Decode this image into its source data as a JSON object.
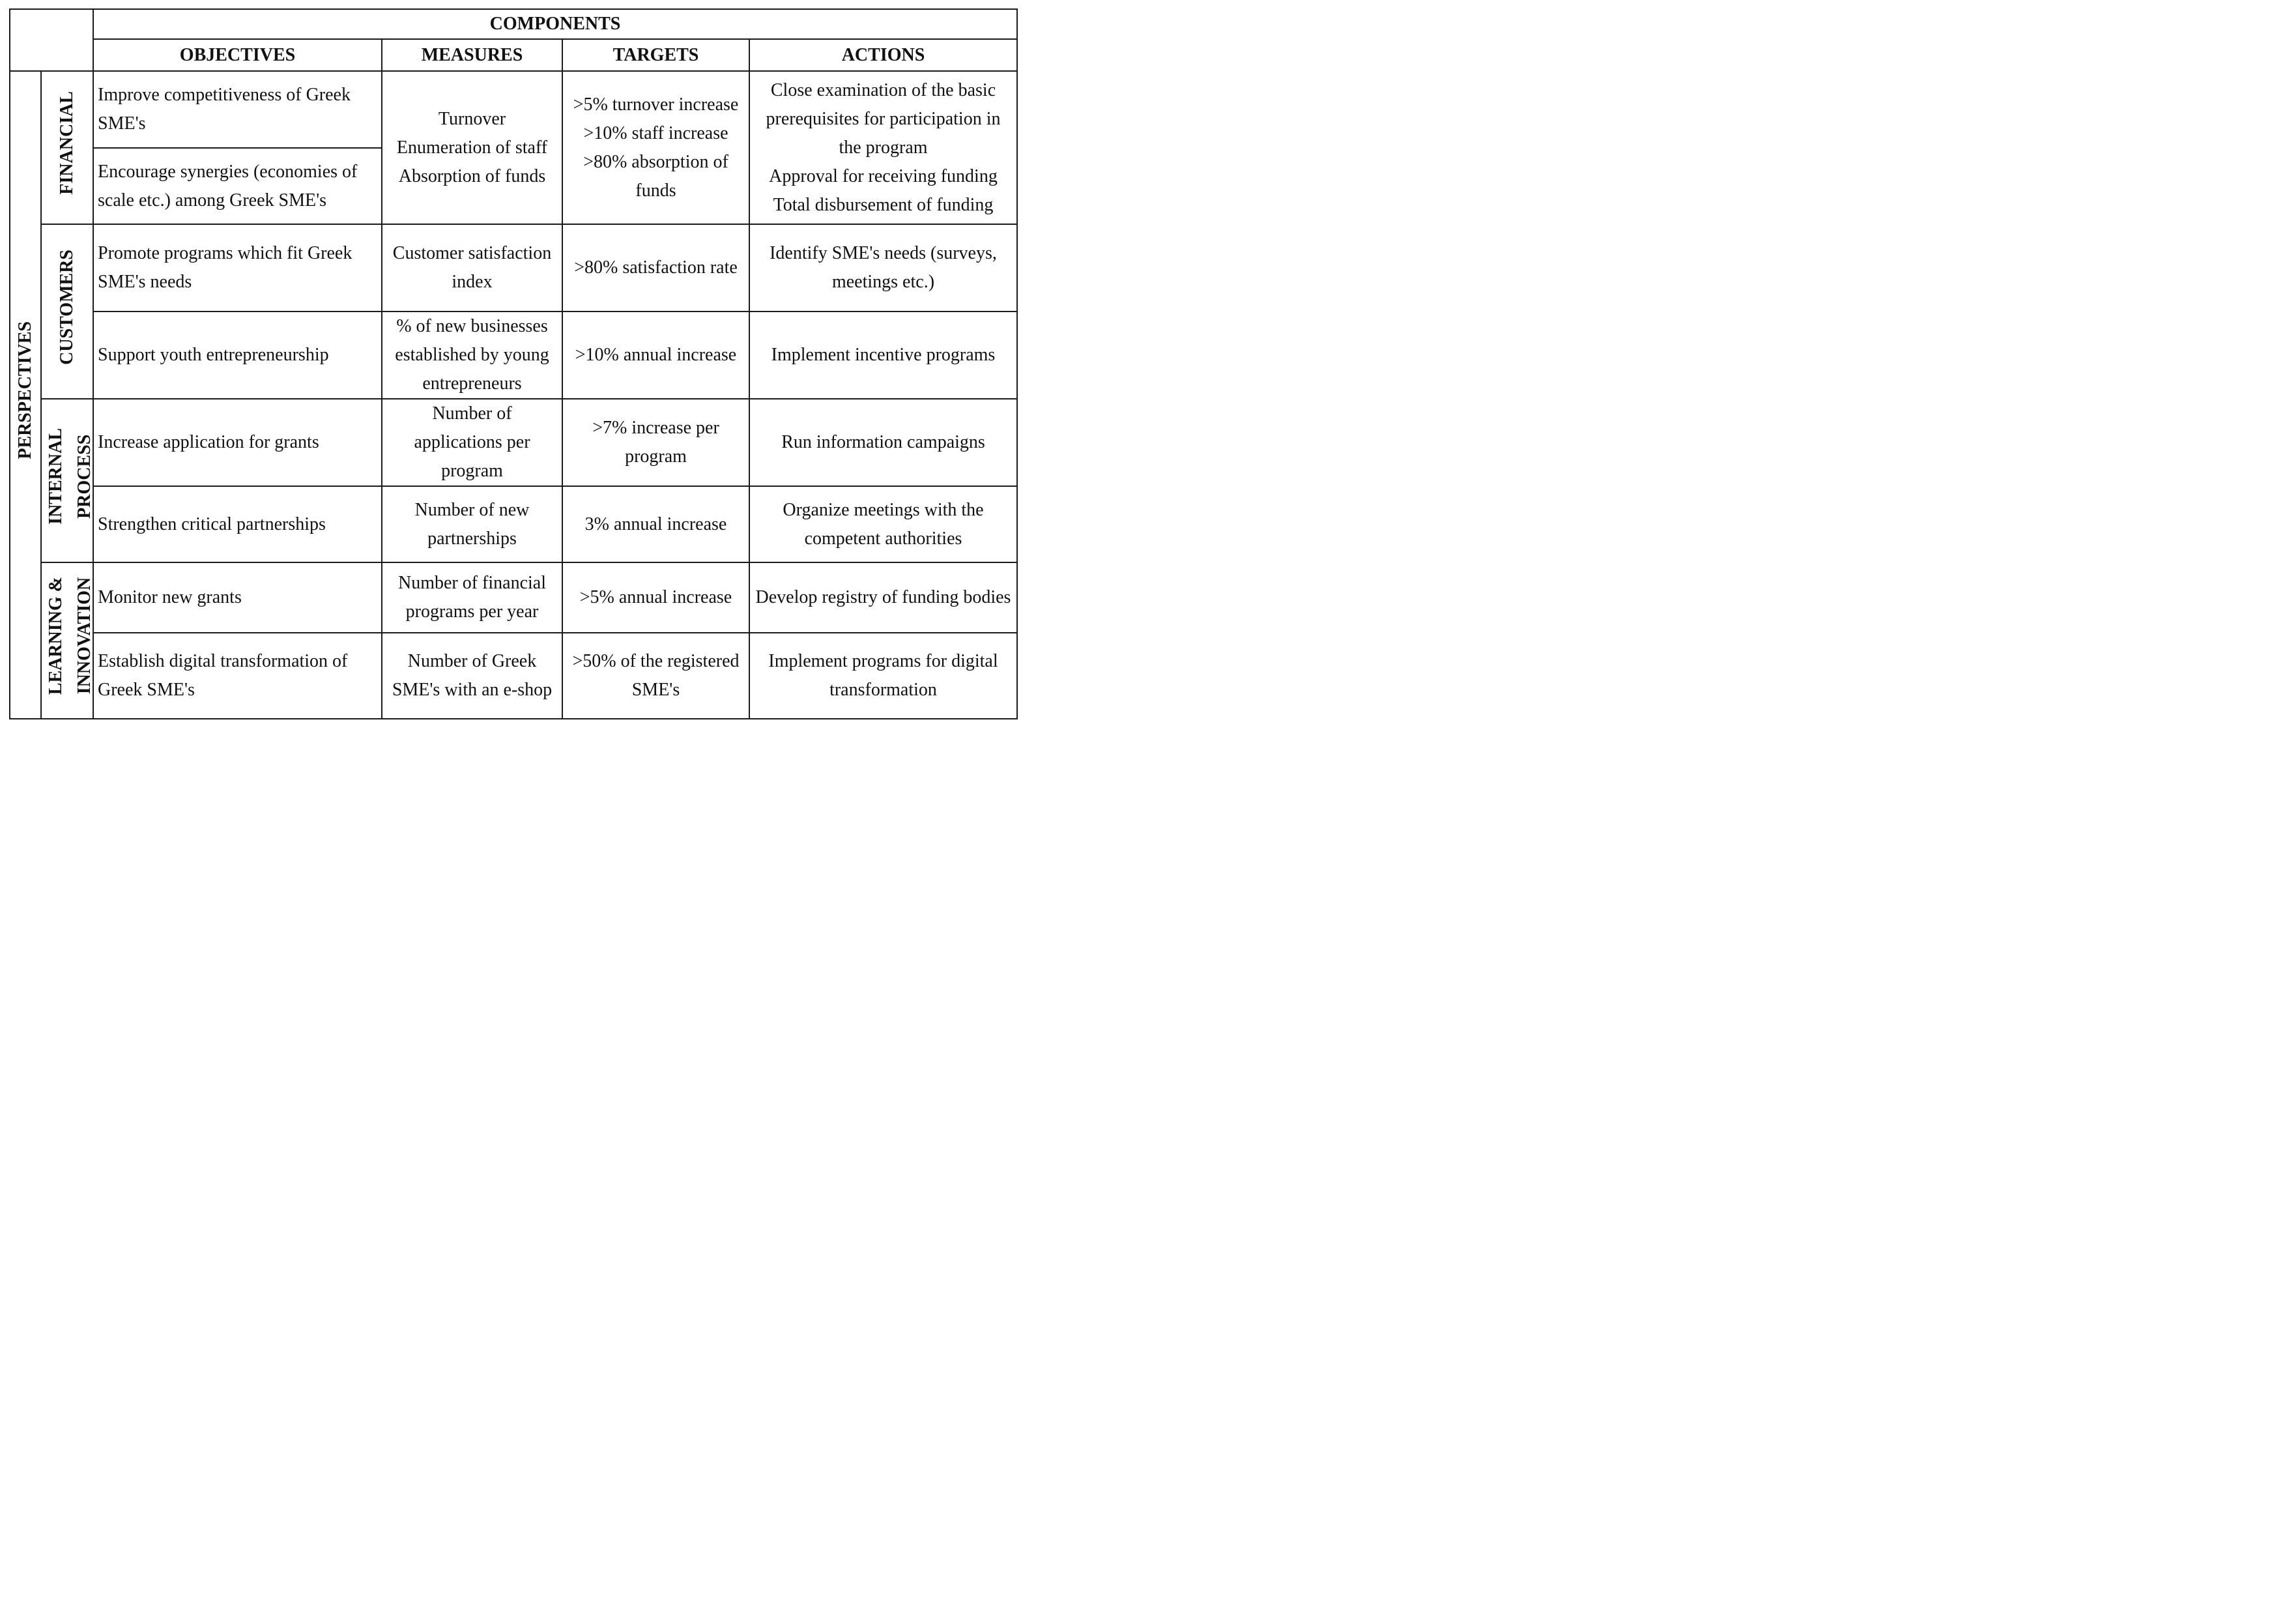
{
  "header": {
    "components": "COMPONENTS",
    "columns": [
      "OBJECTIVES",
      "MEASURES",
      "TARGETS",
      "ACTIONS"
    ]
  },
  "perspectives_label": "PERSPECTIVES",
  "groups": {
    "financial": {
      "label": [
        "FINANCIAL"
      ],
      "objectives": [
        "Improve competitiveness of Greek SME's",
        "Encourage synergies (economies of scale etc.) among Greek SME's"
      ],
      "measures": [
        "Turnover",
        "Enumeration of staff",
        "Absorption of funds"
      ],
      "targets": [
        ">5% turnover increase",
        ">10% staff increase",
        ">80% absorption of funds"
      ],
      "actions": [
        "Close examination of the basic prerequisites for participation in the program",
        "Approval for receiving funding",
        "Total disbursement of funding"
      ]
    },
    "customers": {
      "label": [
        "CUSTOMERS"
      ],
      "rows": [
        {
          "objective": "Promote programs which fit Greek SME's needs",
          "measure": "Customer satisfaction index",
          "target": ">80% satisfaction rate",
          "action": "Identify SME's needs (surveys, meetings etc.)"
        },
        {
          "objective": "Support youth entrepreneurship",
          "measure": "% of new businesses established by young entrepreneurs",
          "target": ">10% annual increase",
          "action": "Implement incentive programs"
        }
      ]
    },
    "internal_process": {
      "label": [
        "INTERNAL",
        "PROCESS"
      ],
      "rows": [
        {
          "objective": "Increase application for grants",
          "measure": "Number of applications per program",
          "target": ">7% increase per program",
          "action": "Run information campaigns"
        },
        {
          "objective": "Strengthen critical partnerships",
          "measure": "Number of new partnerships",
          "target": "3% annual increase",
          "action": "Organize meetings with the competent authorities"
        }
      ]
    },
    "learning_innovation": {
      "label": [
        "LEARNING &",
        "INNOVATION"
      ],
      "rows": [
        {
          "objective": "Monitor new grants",
          "measure": "Number of financial programs per year",
          "target": ">5% annual increase",
          "action": "Develop registry of funding bodies"
        },
        {
          "objective": "Establish digital transformation of Greek SME's",
          "measure": "Number of Greek SME's with an e-shop",
          "target": ">50% of the registered SME's",
          "action": "Implement programs for digital transformation"
        }
      ]
    }
  }
}
